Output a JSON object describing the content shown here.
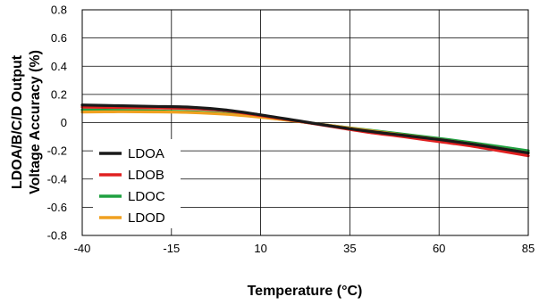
{
  "chart_data": {
    "type": "line",
    "xlabel": "Temperature (°C)",
    "ylabel_lines": [
      "LDOA/B/C/D Output",
      "Voltage Accuracy (%)"
    ],
    "xlim": [
      -40,
      85
    ],
    "ylim": [
      -0.8,
      0.8
    ],
    "x_ticks": [
      "-40",
      "-15",
      "10",
      "35",
      "60",
      "85"
    ],
    "x_tick_values": [
      -40,
      -15,
      10,
      35,
      60,
      85
    ],
    "y_ticks": [
      "0.8",
      "0.6",
      "0.4",
      "0.2",
      "0",
      "-0.2",
      "-0.4",
      "-0.6",
      "-0.8"
    ],
    "y_tick_values": [
      0.8,
      0.6,
      0.4,
      0.2,
      0,
      -0.2,
      -0.4,
      -0.6,
      -0.8
    ],
    "grid": true,
    "legend_position": "bottom-left",
    "series": [
      {
        "name": "LDOA",
        "color": "#1a1a1a",
        "x": [
          -40,
          -30,
          -20,
          -10,
          0,
          10,
          20,
          30,
          40,
          50,
          60,
          70,
          85
        ],
        "y": [
          0.125,
          0.12,
          0.115,
          0.11,
          0.09,
          0.055,
          0.015,
          -0.025,
          -0.06,
          -0.09,
          -0.12,
          -0.155,
          -0.215
        ]
      },
      {
        "name": "LDOB",
        "color": "#e02020",
        "x": [
          -40,
          -30,
          -20,
          -10,
          0,
          10,
          20,
          30,
          40,
          50,
          60,
          70,
          85
        ],
        "y": [
          0.11,
          0.107,
          0.105,
          0.1,
          0.085,
          0.05,
          0.012,
          -0.028,
          -0.068,
          -0.1,
          -0.135,
          -0.17,
          -0.235
        ]
      },
      {
        "name": "LDOC",
        "color": "#1fa040",
        "x": [
          -40,
          -30,
          -20,
          -10,
          0,
          10,
          20,
          30,
          40,
          50,
          60,
          70,
          85
        ],
        "y": [
          0.09,
          0.087,
          0.083,
          0.078,
          0.065,
          0.04,
          0.01,
          -0.022,
          -0.052,
          -0.082,
          -0.112,
          -0.145,
          -0.2
        ]
      },
      {
        "name": "LDOD",
        "color": "#f0a020",
        "x": [
          -40,
          -30,
          -20,
          -10,
          0,
          10,
          20,
          30,
          40,
          50,
          60,
          70,
          85
        ],
        "y": [
          0.075,
          0.077,
          0.076,
          0.072,
          0.06,
          0.038,
          0.01,
          -0.022,
          -0.055,
          -0.088,
          -0.12,
          -0.155,
          -0.215
        ]
      }
    ]
  }
}
